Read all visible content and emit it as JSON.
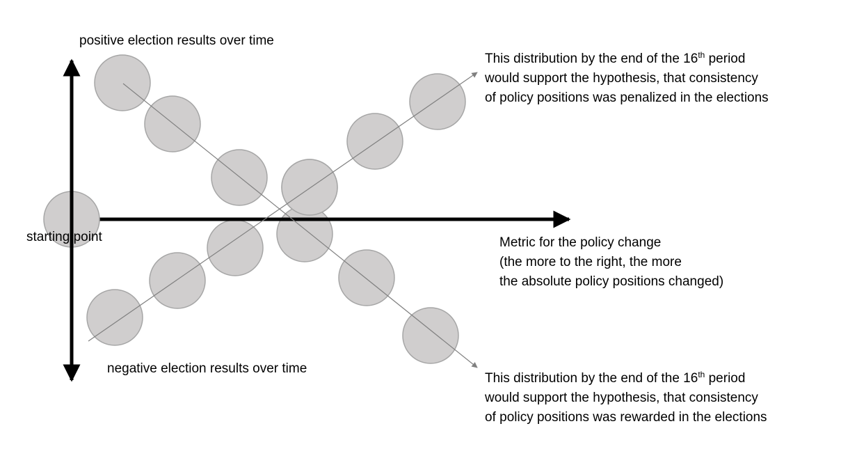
{
  "colors": {
    "background": "#ffffff",
    "axis": "#000000",
    "trend_line": "#808080",
    "circle_fill": "#d0cece",
    "circle_stroke": "#a6a6a6",
    "text": "#000000"
  },
  "labels": {
    "y_axis_positive": "positive election results over time",
    "y_axis_negative": "negative election results over time",
    "origin": "starting point",
    "x_axis": {
      "line1": "Metric for the policy change",
      "line2": "(the more to the right, the more",
      "line3": "the absolute policy positions changed)"
    },
    "upper_scenario": {
      "line1_pre": "This distribution by the end of the 16",
      "line1_sup": "th",
      "line1_post": " period",
      "line2": "would support the hypothesis, that consistency",
      "line3": "of policy positions was penalized in the elections"
    },
    "lower_scenario": {
      "line1_pre": "This distribution by the end of the 16",
      "line1_sup": "th",
      "line1_post": " period",
      "line2": "would support the hypothesis, that consistency",
      "line3": "of policy positions was rewarded in the elections"
    }
  }
}
